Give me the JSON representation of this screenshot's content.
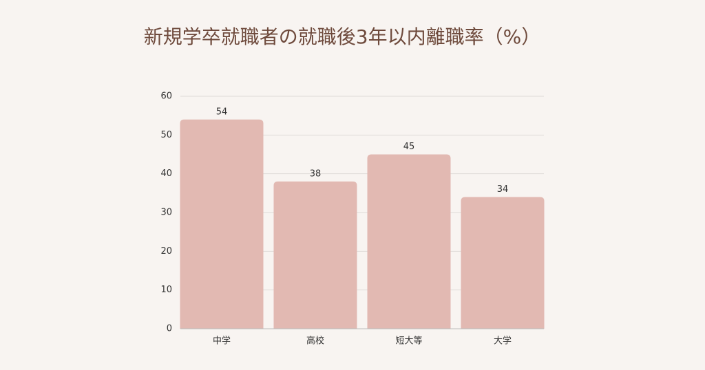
{
  "chart_data": {
    "type": "bar",
    "title": "新規学卒就職者の就職後3年以内離職率（%）",
    "categories": [
      "中学",
      "高校",
      "短大等",
      "大学"
    ],
    "values": [
      54,
      38,
      45,
      34
    ],
    "color": "#e2b9b2",
    "ylim": [
      0,
      60
    ],
    "yticks": [
      0,
      10,
      20,
      30,
      40,
      50,
      60
    ],
    "grid": true
  }
}
